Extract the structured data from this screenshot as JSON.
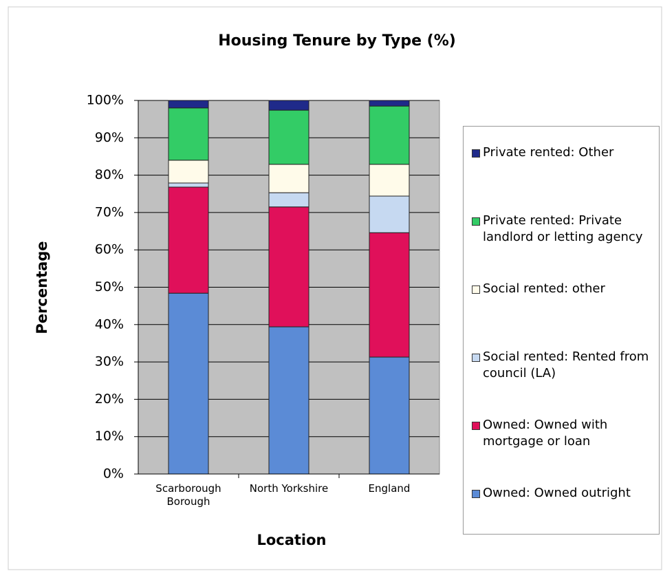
{
  "chart_data": {
    "type": "stacked_bar",
    "title": "Housing Tenure by Type (%)",
    "x_label": "Location",
    "y_label": "Percentage",
    "categories": [
      "Scarborough Borough",
      "North Yorkshire",
      "England"
    ],
    "series": [
      {
        "name": "Owned: Owned outright",
        "color": "#5b8bd6",
        "values": [
          48.4,
          39.4,
          31.3
        ]
      },
      {
        "name": "Owned: Owned with mortgage or loan",
        "color": "#e0105a",
        "values": [
          28.4,
          32.1,
          33.3
        ]
      },
      {
        "name": "Social rented: Rented from council (LA)",
        "color": "#c6d9f1",
        "values": [
          1.1,
          3.8,
          9.8
        ]
      },
      {
        "name": "Social rented: other",
        "color": "#fffbea",
        "values": [
          6.1,
          7.6,
          8.5
        ]
      },
      {
        "name": "Private rented: Private landlord or letting agency",
        "color": "#33cc66",
        "values": [
          14.0,
          14.5,
          15.6
        ]
      },
      {
        "name": "Private rented: Other",
        "color": "#1f2a8a",
        "values": [
          2.0,
          2.6,
          1.5
        ]
      }
    ],
    "ylim": [
      0,
      100
    ],
    "yticks": [
      {
        "value": 0,
        "label": "0%"
      },
      {
        "value": 10,
        "label": "10%"
      },
      {
        "value": 20,
        "label": "20%"
      },
      {
        "value": 30,
        "label": "30%"
      },
      {
        "value": 40,
        "label": "40%"
      },
      {
        "value": 50,
        "label": "50%"
      },
      {
        "value": 60,
        "label": "60%"
      },
      {
        "value": 70,
        "label": "70%"
      },
      {
        "value": 80,
        "label": "80%"
      },
      {
        "value": 90,
        "label": "90%"
      },
      {
        "value": 100,
        "label": "100%"
      }
    ],
    "grid": true,
    "plot_background": "#c0c0c0",
    "legend": "right"
  }
}
